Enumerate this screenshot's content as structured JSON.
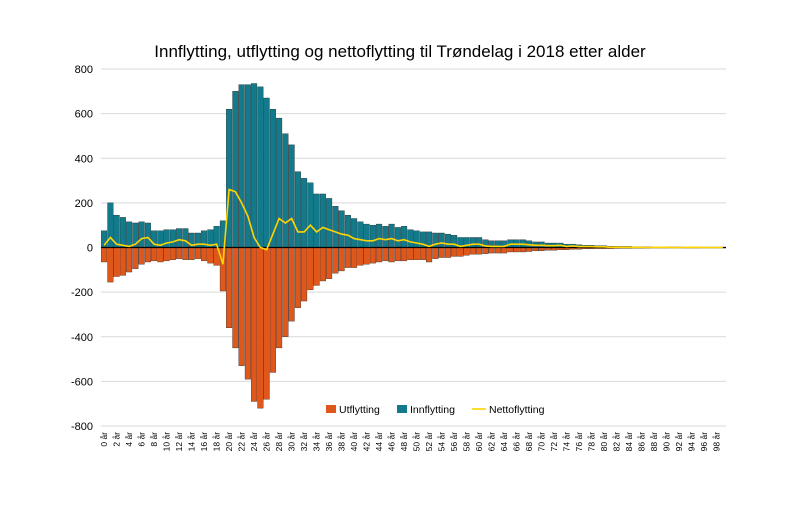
{
  "chart_data": {
    "type": "bar",
    "title": "Innflytting, utflytting og nettoflytting til Trøndelag i 2018 etter alder",
    "ylim": [
      -800,
      800
    ],
    "yticks": [
      -800,
      -600,
      -400,
      -200,
      0,
      200,
      400,
      600,
      800
    ],
    "grid": true,
    "legend_position": "bottom-center",
    "colors": {
      "Innflytting": "#127a8a",
      "Utflytting": "#e0571b",
      "Nettoflytting": "#ffd400"
    },
    "categories": [
      "0 år",
      "1 år",
      "2 år",
      "3 år",
      "4 år",
      "5 år",
      "6 år",
      "7 år",
      "8 år",
      "9 år",
      "10 år",
      "11 år",
      "12 år",
      "13 år",
      "14 år",
      "15 år",
      "16 år",
      "17 år",
      "18 år",
      "19 år",
      "20 år",
      "21 år",
      "22 år",
      "23 år",
      "24 år",
      "25 år",
      "26 år",
      "27 år",
      "28 år",
      "29 år",
      "30 år",
      "31 år",
      "32 år",
      "33 år",
      "34 år",
      "35 år",
      "36 år",
      "37 år",
      "38 år",
      "39 år",
      "40 år",
      "41 år",
      "42 år",
      "43 år",
      "44 år",
      "45 år",
      "46 år",
      "47 år",
      "48 år",
      "49 år",
      "50 år",
      "51 år",
      "52 år",
      "53 år",
      "54 år",
      "55 år",
      "56 år",
      "57 år",
      "58 år",
      "59 år",
      "60 år",
      "61 år",
      "62 år",
      "63 år",
      "64 år",
      "65 år",
      "66 år",
      "67 år",
      "68 år",
      "69 år",
      "70 år",
      "71 år",
      "72 år",
      "73 år",
      "74 år",
      "75 år",
      "76 år",
      "77 år",
      "78 år",
      "79 år",
      "80 år",
      "81 år",
      "82 år",
      "83 år",
      "84 år",
      "85 år",
      "86 år",
      "87 år",
      "88 år",
      "89 år",
      "90 år",
      "91 år",
      "92 år",
      "93 år",
      "94 år",
      "95 år",
      "96 år",
      "97 år",
      "98 år",
      "99 år"
    ],
    "xtick_labels": [
      "0 år",
      "2 år",
      "4 år",
      "6 år",
      "8 år",
      "10 år",
      "12 år",
      "14 år",
      "16 år",
      "18 år",
      "20 år",
      "22 år",
      "24 år",
      "26 år",
      "28 år",
      "30 år",
      "32 år",
      "34 år",
      "36 år",
      "38 år",
      "40 år",
      "42 år",
      "44 år",
      "46 år",
      "48 år",
      "50 år",
      "52 år",
      "54 år",
      "56 år",
      "58 år",
      "60 år",
      "62 år",
      "64 år",
      "66 år",
      "68 år",
      "70 år",
      "72 år",
      "74 år",
      "76 år",
      "78 år",
      "80 år",
      "82 år",
      "84 år",
      "86 år",
      "88 år",
      "90 år",
      "92 år",
      "94 år",
      "96 år",
      "98 år"
    ],
    "series": [
      {
        "name": "Utflytting",
        "values": [
          -65,
          -155,
          -130,
          -125,
          -110,
          -95,
          -75,
          -65,
          -60,
          -65,
          -60,
          -55,
          -50,
          -55,
          -55,
          -50,
          -60,
          -70,
          -80,
          -195,
          -360,
          -450,
          -530,
          -590,
          -690,
          -720,
          -680,
          -560,
          -450,
          -400,
          -330,
          -270,
          -240,
          -190,
          -170,
          -150,
          -140,
          -115,
          -105,
          -90,
          -90,
          -80,
          -75,
          -70,
          -65,
          -60,
          -65,
          -60,
          -60,
          -55,
          -55,
          -55,
          -65,
          -50,
          -45,
          -45,
          -40,
          -40,
          -35,
          -30,
          -30,
          -28,
          -25,
          -25,
          -25,
          -20,
          -20,
          -20,
          -18,
          -15,
          -15,
          -12,
          -12,
          -10,
          -10,
          -8,
          -8,
          -6,
          -6,
          -5,
          -5,
          -5,
          -4,
          -4,
          -4,
          -3,
          -3,
          -3,
          -2,
          -2,
          -2,
          -2,
          -2,
          -1,
          -1,
          -1,
          -1,
          -1,
          -1,
          -1
        ]
      },
      {
        "name": "Innflytting",
        "values": [
          75,
          200,
          145,
          135,
          115,
          110,
          115,
          110,
          75,
          75,
          80,
          80,
          85,
          85,
          65,
          65,
          75,
          80,
          95,
          120,
          620,
          700,
          730,
          730,
          735,
          720,
          670,
          620,
          580,
          510,
          460,
          340,
          310,
          290,
          240,
          240,
          220,
          185,
          165,
          145,
          130,
          115,
          105,
          100,
          105,
          95,
          105,
          90,
          95,
          80,
          75,
          70,
          70,
          65,
          65,
          60,
          55,
          45,
          45,
          45,
          45,
          35,
          30,
          30,
          30,
          35,
          35,
          35,
          30,
          25,
          25,
          20,
          20,
          20,
          15,
          15,
          12,
          10,
          10,
          8,
          8,
          6,
          6,
          5,
          5,
          4,
          4,
          3,
          3,
          3,
          3,
          2,
          2,
          2,
          2,
          2,
          1,
          1,
          1,
          1
        ]
      },
      {
        "name": "Nettoflytting",
        "values": [
          10,
          45,
          15,
          10,
          5,
          15,
          40,
          45,
          15,
          10,
          20,
          25,
          35,
          30,
          10,
          15,
          15,
          10,
          15,
          -75,
          260,
          250,
          200,
          140,
          45,
          0,
          -10,
          60,
          130,
          110,
          130,
          70,
          70,
          100,
          70,
          90,
          80,
          70,
          60,
          55,
          40,
          35,
          30,
          30,
          40,
          35,
          40,
          30,
          35,
          25,
          20,
          15,
          5,
          15,
          20,
          15,
          15,
          5,
          10,
          15,
          15,
          7,
          5,
          5,
          5,
          15,
          15,
          15,
          12,
          10,
          10,
          8,
          8,
          10,
          5,
          7,
          4,
          4,
          4,
          3,
          3,
          1,
          2,
          1,
          1,
          1,
          1,
          0,
          1,
          1,
          1,
          0,
          0,
          1,
          1,
          1,
          0,
          0,
          0,
          0
        ]
      }
    ]
  }
}
